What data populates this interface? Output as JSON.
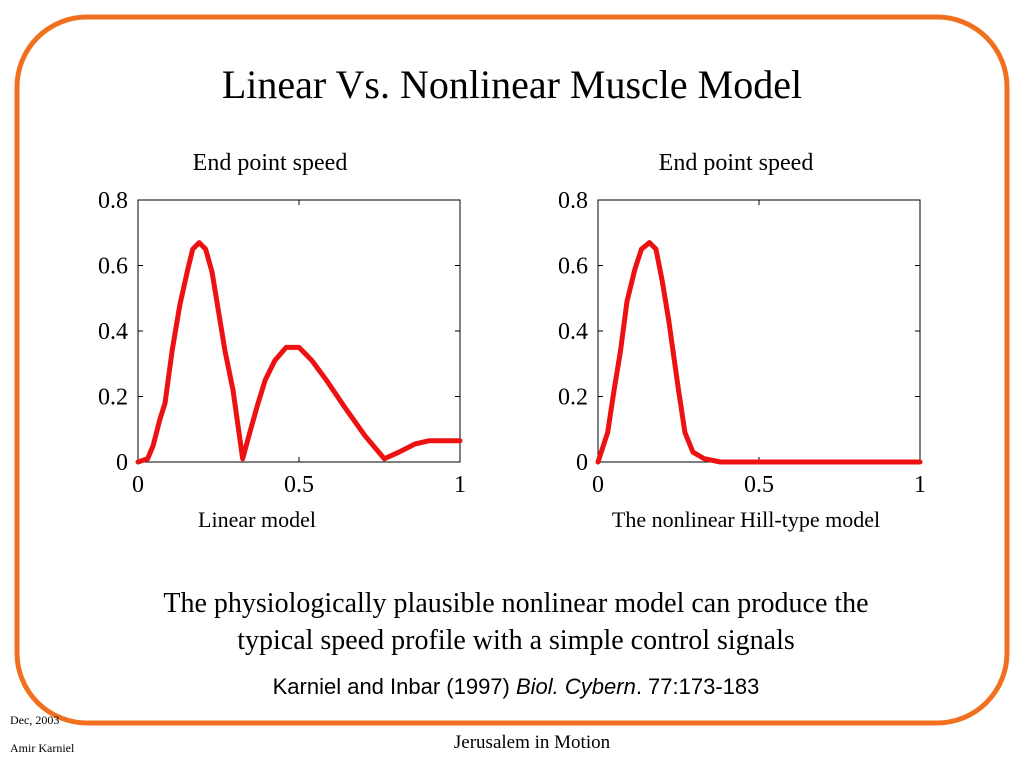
{
  "slide": {
    "title": "Linear Vs. Nonlinear Muscle Model",
    "body": [
      "The physiologically plausible nonlinear model can produce the",
      "typical speed profile with a simple control signals"
    ],
    "citation": [
      "Karniel and Inbar (1997) ",
      "Biol. Cybern",
      ". 77:173-183"
    ],
    "footer_date": "Dec, 2003",
    "footer_author": "Amir Karniel",
    "footer_center": "Jerusalem in Motion"
  },
  "chart_data": [
    {
      "type": "line",
      "title": "End point speed",
      "xlabel": "Linear model",
      "x": [
        0,
        0.03,
        0.047,
        0.068,
        0.084,
        0.106,
        0.13,
        0.155,
        0.17,
        0.19,
        0.21,
        0.23,
        0.25,
        0.27,
        0.295,
        0.325,
        0.35,
        0.37,
        0.395,
        0.425,
        0.46,
        0.5,
        0.54,
        0.585,
        0.64,
        0.705,
        0.765,
        0.81,
        0.86,
        0.905,
        1
      ],
      "series": [
        {
          "color": "#ee1111",
          "values": [
            0,
            0.01,
            0.05,
            0.13,
            0.18,
            0.34,
            0.48,
            0.59,
            0.65,
            0.67,
            0.65,
            0.58,
            0.46,
            0.34,
            0.22,
            0.01,
            0.1,
            0.17,
            0.25,
            0.31,
            0.35,
            0.35,
            0.31,
            0.25,
            0.17,
            0.08,
            0.01,
            0.03,
            0.055,
            0.065,
            0.065
          ]
        }
      ],
      "xlim": [
        0,
        1
      ],
      "xticks": [
        0,
        0.5,
        1
      ],
      "ylim": [
        0,
        0.8
      ],
      "yticks": [
        0,
        0.2,
        0.4,
        0.6,
        0.8
      ]
    },
    {
      "type": "line",
      "title": "End point speed",
      "xlabel": "The nonlinear Hill-type model",
      "x": [
        0,
        0.03,
        0.05,
        0.07,
        0.09,
        0.115,
        0.135,
        0.16,
        0.18,
        0.2,
        0.22,
        0.25,
        0.27,
        0.295,
        0.33,
        0.38,
        1
      ],
      "series": [
        {
          "color": "#ee1111",
          "values": [
            0,
            0.09,
            0.22,
            0.34,
            0.49,
            0.59,
            0.65,
            0.67,
            0.65,
            0.55,
            0.43,
            0.22,
            0.09,
            0.03,
            0.01,
            0,
            0
          ]
        }
      ],
      "xlim": [
        0,
        1
      ],
      "xticks": [
        0,
        0.5,
        1
      ],
      "ylim": [
        0,
        0.8
      ],
      "yticks": [
        0,
        0.2,
        0.4,
        0.6,
        0.8
      ]
    }
  ]
}
